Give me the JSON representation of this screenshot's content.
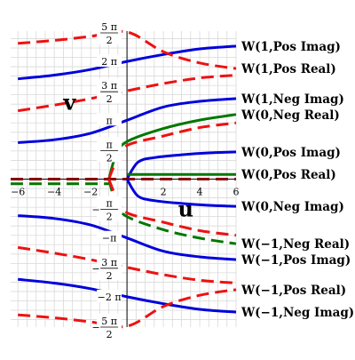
{
  "chart_data": {
    "type": "line",
    "title": "",
    "xlabel": "u",
    "ylabel": "v",
    "xlim": [
      -6.4,
      6
    ],
    "ylim": [
      -7.9,
      7.9
    ],
    "grid": true,
    "x_ticks": [
      "-6",
      "-4",
      "-2",
      "2",
      "4",
      "6"
    ],
    "y_ticks": [
      {
        "num": "5 π",
        "den": "2",
        "value": 7.854,
        "fraction": true
      },
      {
        "label": "2 π",
        "value": 6.283,
        "fraction": false
      },
      {
        "num": "3 π",
        "den": "2",
        "value": 4.712,
        "fraction": true
      },
      {
        "label": "π",
        "value": 3.1416,
        "fraction": false
      },
      {
        "num": "π",
        "den": "2",
        "value": 1.5708,
        "fraction": true
      },
      {
        "num": "π",
        "den": "2",
        "value": -1.5708,
        "fraction": true,
        "negative": true
      },
      {
        "label": "−π",
        "value": -3.1416,
        "fraction": false
      },
      {
        "num": "3 π",
        "den": "2",
        "value": -4.712,
        "fraction": true,
        "negative": true
      },
      {
        "label": "−2 π",
        "value": -6.283,
        "fraction": false
      },
      {
        "num": "5 π",
        "den": "2",
        "value": -7.854,
        "fraction": true,
        "negative": true
      }
    ],
    "legend_position": "right",
    "series": [
      {
        "name": "W(1,Pos Imag)",
        "color": "#0000dd",
        "dash": "solid",
        "x": [
          -6,
          -4,
          -2,
          0,
          2,
          4,
          6
        ],
        "y": [
          5.35,
          5.55,
          5.85,
          6.28,
          6.65,
          6.95,
          7.1
        ]
      },
      {
        "name": "W(1,Pos Real)",
        "color": "#ee1111",
        "dash": "dashed",
        "x": [
          -6,
          -4,
          -2,
          0,
          2,
          4,
          6
        ],
        "y": [
          7.25,
          7.4,
          7.62,
          7.854,
          6.8,
          6.2,
          5.9
        ]
      },
      {
        "name": "W(1,Neg Imag)",
        "color": "#0000dd",
        "dash": "solid",
        "x": [
          -6,
          -4,
          -2,
          0,
          2,
          4,
          6
        ],
        "y": [
          1.95,
          2.1,
          2.45,
          3.14,
          3.85,
          4.15,
          4.3
        ]
      },
      {
        "name": "W(1,Pos Real)",
        "color": "#ee1111",
        "dash": "dashed",
        "x": [
          -6,
          -4,
          -2,
          0,
          2,
          4,
          6
        ],
        "y": [
          3.65,
          3.95,
          4.3,
          4.712,
          5.1,
          5.4,
          5.55
        ]
      },
      {
        "name": "W(0,Neg Real)",
        "color": "#007700",
        "dash": "solid",
        "x": [
          -1,
          -0.6,
          0,
          2,
          4,
          6
        ],
        "y": [
          0,
          1.3,
          2.0,
          2.7,
          3.15,
          3.45
        ]
      },
      {
        "name": "W(0,Neg Real)",
        "color": "#ee1111",
        "dash": "dashed",
        "x": [
          -1,
          -0.55,
          0,
          2,
          4,
          6
        ],
        "y": [
          0,
          1.05,
          1.8,
          2.3,
          2.75,
          3.0
        ]
      },
      {
        "name": "W(0,Pos Imag)",
        "color": "#0000dd",
        "dash": "solid",
        "x": [
          0,
          0.6,
          1.5,
          3,
          4.5,
          6
        ],
        "y": [
          0,
          0.9,
          1.15,
          1.3,
          1.4,
          1.45
        ]
      },
      {
        "name": "W(0,Pos Real)",
        "color": "#007700",
        "dash": "solid",
        "x": [
          0,
          6
        ],
        "y": [
          0.25,
          0.25
        ]
      },
      {
        "name": "W(0,Pos Real)",
        "color": "#880000",
        "dash": "dashed",
        "x": [
          -6.4,
          6
        ],
        "y": [
          0,
          0
        ]
      },
      {
        "name": "W(0,Neg Imag)",
        "color": "#0000dd",
        "dash": "solid",
        "x": [
          0,
          0.6,
          1.5,
          3,
          4.5,
          6
        ],
        "y": [
          0,
          -0.9,
          -1.15,
          -1.3,
          -1.4,
          -1.45
        ]
      },
      {
        "name": "W(0,Pos Real)",
        "color": "#007700",
        "dash": "dashed",
        "x": [
          -6.4,
          -1
        ],
        "y": [
          -0.25,
          -0.25
        ]
      },
      {
        "name": "W(-1,Neg Real)",
        "color": "#007700",
        "dash": "dashed",
        "x": [
          -1,
          -0.6,
          0,
          2,
          4,
          6
        ],
        "y": [
          0,
          -1.3,
          -2.0,
          -2.7,
          -3.15,
          -3.45
        ]
      },
      {
        "name": "W(-1,Neg Real)",
        "color": "#ee1111",
        "dash": "dashed",
        "x": [
          -1,
          -0.55,
          0,
          2,
          4,
          6
        ],
        "y": [
          0,
          -1.05,
          -1.8,
          -2.3,
          -2.75,
          -3.0
        ]
      },
      {
        "name": "W(-1,Pos Imag)",
        "color": "#0000dd",
        "dash": "solid",
        "x": [
          -6,
          -4,
          -2,
          0,
          2,
          4,
          6
        ],
        "y": [
          -1.95,
          -2.1,
          -2.45,
          -3.14,
          -3.85,
          -4.15,
          -4.3
        ]
      },
      {
        "name": "W(-1,Pos Real)",
        "color": "#ee1111",
        "dash": "dashed",
        "x": [
          -6,
          -4,
          -2,
          0,
          2,
          4,
          6
        ],
        "y": [
          -3.65,
          -3.95,
          -4.3,
          -4.712,
          -5.1,
          -5.4,
          -5.55
        ]
      },
      {
        "name": "W(-1,Neg Imag)",
        "color": "#0000dd",
        "dash": "solid",
        "x": [
          -6,
          -4,
          -2,
          0,
          2,
          4,
          6
        ],
        "y": [
          -5.35,
          -5.55,
          -5.85,
          -6.28,
          -6.65,
          -6.95,
          -7.1
        ]
      },
      {
        "name": "W(-1,Pos Real)",
        "color": "#ee1111",
        "dash": "dashed",
        "x": [
          -6,
          -4,
          -2,
          0,
          2,
          4,
          6
        ],
        "y": [
          -7.25,
          -7.4,
          -7.62,
          -7.854,
          -6.8,
          -6.2,
          -5.9
        ]
      }
    ],
    "legend": [
      "W(1,Pos Imag)",
      "W(1,Pos Real)",
      "W(1,Neg Imag)",
      "W(0,Neg Real)",
      "W(0,Pos Imag)",
      "W(0,Pos Real)",
      "W(0,Neg Imag)",
      "W(−1,Neg Real)",
      "W(−1,Pos Imag)",
      "W(−1,Pos Real)",
      "W(−1,Neg Imag)"
    ],
    "legend_series_y": [
      7.1,
      5.9,
      4.3,
      3.45,
      1.45,
      0.25,
      -1.45,
      -3.45,
      -4.3,
      -5.9,
      -7.1
    ]
  }
}
